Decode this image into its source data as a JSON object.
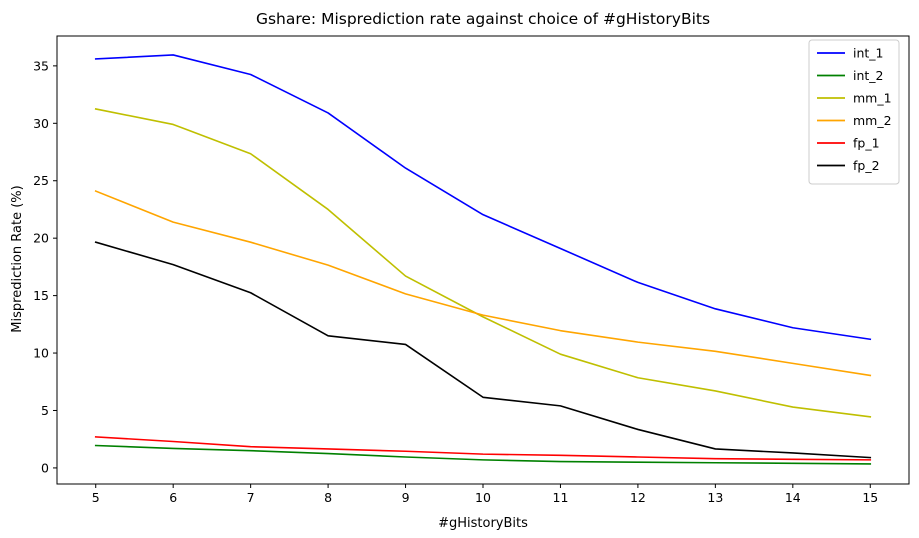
{
  "chart_data": {
    "type": "line",
    "title": "Gshare: Misprediction rate against choice of #gHistoryBits",
    "xlabel": "#gHistoryBits",
    "ylabel": "Misprediction Rate (%)",
    "x": [
      5,
      6,
      7,
      8,
      9,
      10,
      11,
      12,
      13,
      14,
      15
    ],
    "xticks": [
      5,
      6,
      7,
      8,
      9,
      10,
      11,
      12,
      13,
      14,
      15
    ],
    "yticks": [
      0,
      5,
      10,
      15,
      20,
      25,
      30,
      35
    ],
    "xlim": [
      4.5,
      15.5
    ],
    "ylim": [
      -1.4,
      37.6
    ],
    "grid": false,
    "legend_position": "top-right",
    "series": [
      {
        "name": "int_1",
        "color": "#0000ff",
        "values": [
          35.6,
          35.95,
          34.25,
          30.9,
          26.1,
          22.05,
          19.1,
          16.15,
          13.85,
          12.2,
          11.2
        ]
      },
      {
        "name": "int_2",
        "color": "#008000",
        "values": [
          1.95,
          1.7,
          1.5,
          1.25,
          0.95,
          0.7,
          0.55,
          0.5,
          0.45,
          0.4,
          0.35
        ]
      },
      {
        "name": "mm_1",
        "color": "#bfbf00",
        "values": [
          31.25,
          29.9,
          27.35,
          22.5,
          16.7,
          13.15,
          9.9,
          7.85,
          6.7,
          5.3,
          4.45
        ]
      },
      {
        "name": "mm_2",
        "color": "#ffa500",
        "values": [
          24.1,
          21.4,
          19.65,
          17.65,
          15.15,
          13.3,
          11.95,
          10.95,
          10.15,
          9.1,
          8.05
        ]
      },
      {
        "name": "fp_1",
        "color": "#ff0000",
        "values": [
          2.7,
          2.3,
          1.85,
          1.65,
          1.45,
          1.2,
          1.1,
          0.95,
          0.8,
          0.75,
          0.7
        ]
      },
      {
        "name": "fp_2",
        "color": "#000000",
        "values": [
          19.65,
          17.7,
          15.25,
          11.5,
          10.75,
          6.15,
          5.4,
          3.35,
          1.65,
          1.3,
          0.9
        ]
      }
    ]
  }
}
